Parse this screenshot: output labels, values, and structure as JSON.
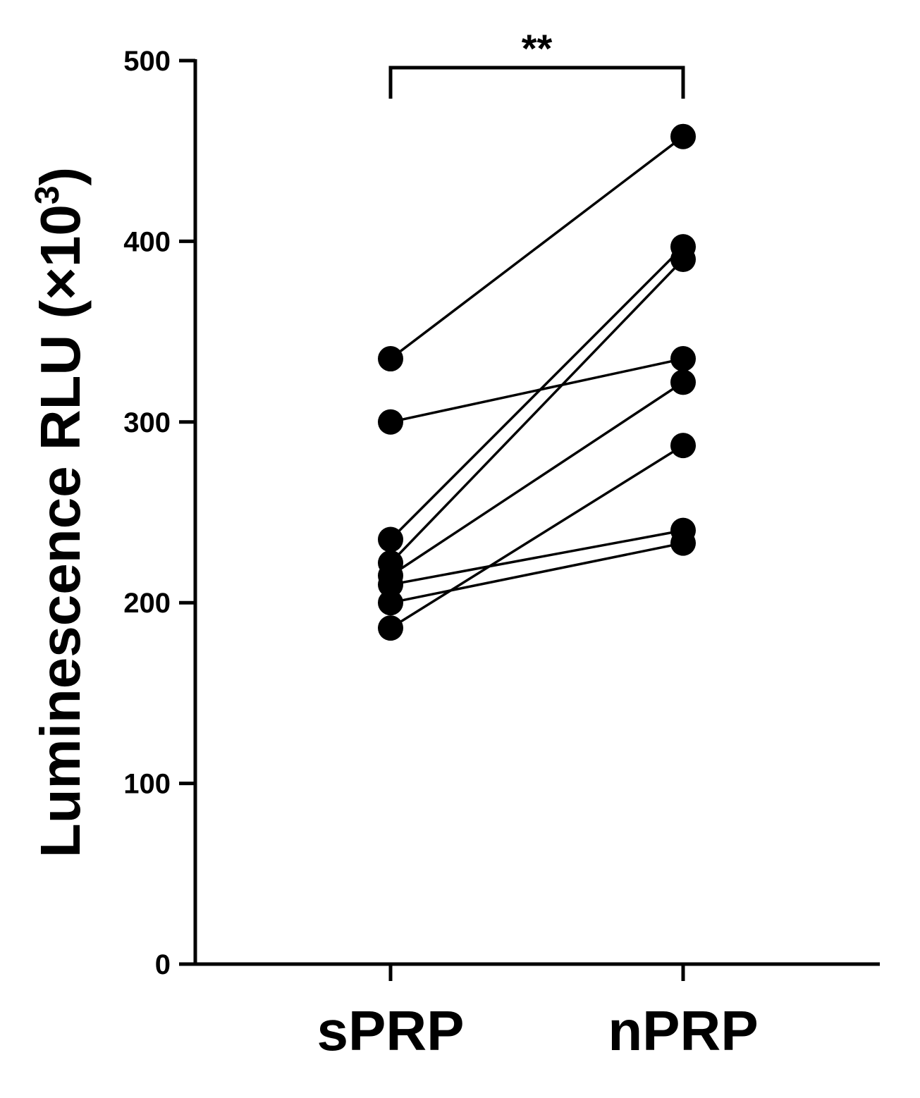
{
  "chart_data": {
    "type": "scatter",
    "subtype": "paired-lines",
    "categories": [
      "sPRP",
      "nPRP"
    ],
    "ylabel": "Luminescence RLU (×10³)",
    "ylabel_main": "Luminescence RLU (×10",
    "ylabel_sup": "3",
    "ylabel_close": ")",
    "ylim": [
      0,
      500
    ],
    "yticks": [
      0,
      100,
      200,
      300,
      400,
      500
    ],
    "grid": false,
    "significance": {
      "label": "**",
      "between": [
        "sPRP",
        "nPRP"
      ]
    },
    "pairs": [
      {
        "sPRP": 335,
        "nPRP": 458
      },
      {
        "sPRP": 300,
        "nPRP": 335
      },
      {
        "sPRP": 235,
        "nPRP": 397
      },
      {
        "sPRP": 222,
        "nPRP": 390
      },
      {
        "sPRP": 215,
        "nPRP": 322
      },
      {
        "sPRP": 210,
        "nPRP": 240
      },
      {
        "sPRP": 200,
        "nPRP": 233
      },
      {
        "sPRP": 186,
        "nPRP": 287
      }
    ],
    "marker_color": "#000000",
    "line_color": "#000000"
  }
}
